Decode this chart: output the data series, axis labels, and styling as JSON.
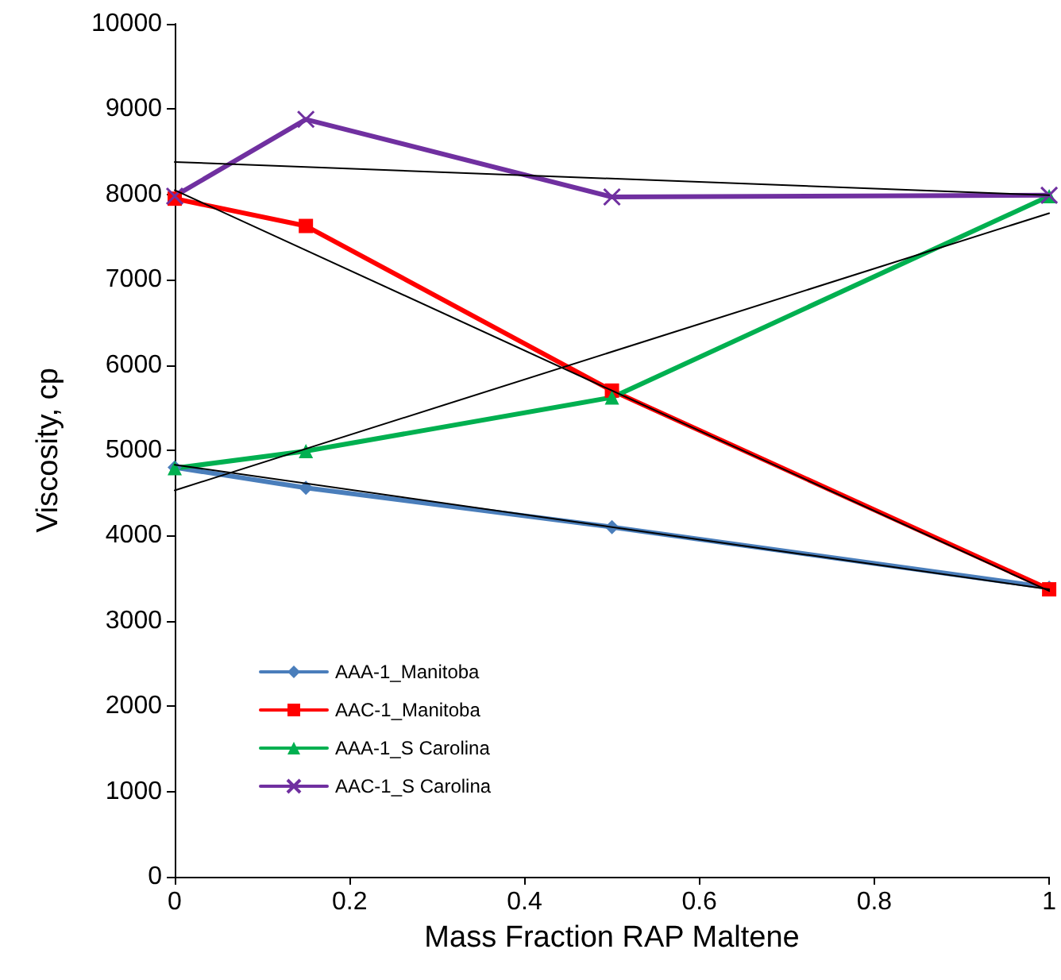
{
  "chart_data": {
    "type": "line",
    "xlabel": "Mass Fraction RAP Maltene",
    "ylabel": "Viscosity, cp",
    "xlim": [
      0,
      1
    ],
    "xticks": [
      0,
      0.2,
      0.4,
      0.6,
      0.8,
      1
    ],
    "ylim": [
      0,
      10000
    ],
    "yticks": [
      0,
      1000,
      2000,
      3000,
      4000,
      5000,
      6000,
      7000,
      8000,
      9000,
      10000
    ],
    "grid": false,
    "legend": "bottom left",
    "line_style": "solid",
    "series": [
      {
        "name": "AAA-1_Manitoba",
        "color": "#4a7ebb",
        "marker": "diamond",
        "x": [
          0,
          0.15,
          0.5,
          1
        ],
        "values": [
          4800,
          4560,
          4100,
          3390
        ]
      },
      {
        "name": "AAC-1_Manitoba",
        "color": "#ff0000",
        "marker": "square",
        "x": [
          0,
          0.15,
          0.5,
          1
        ],
        "values": [
          7950,
          7630,
          5700,
          3370
        ]
      },
      {
        "name": "AAA-1_S Carolina",
        "color": "#00b050",
        "marker": "triangle",
        "x": [
          0,
          0.15,
          0.5,
          1
        ],
        "values": [
          4790,
          4990,
          5620,
          7980
        ]
      },
      {
        "name": "AAC-1_S Carolina",
        "color": "#7030a0",
        "marker": "cross",
        "x": [
          0,
          0.15,
          0.5,
          1
        ],
        "values": [
          7980,
          8880,
          7970,
          7990
        ]
      },
      {
        "color": "#000000",
        "marker": "none",
        "x": [
          0,
          1
        ],
        "values": [
          8380,
          7990
        ]
      },
      {
        "color": "#000000",
        "marker": "none",
        "x": [
          0,
          1
        ],
        "values": [
          8050,
          3350
        ]
      },
      {
        "color": "#000000",
        "marker": "none",
        "x": [
          0,
          1
        ],
        "values": [
          4530,
          7780
        ]
      },
      {
        "color": "#000000",
        "marker": "none",
        "x": [
          0,
          1
        ],
        "values": [
          4830,
          3370
        ]
      }
    ]
  }
}
